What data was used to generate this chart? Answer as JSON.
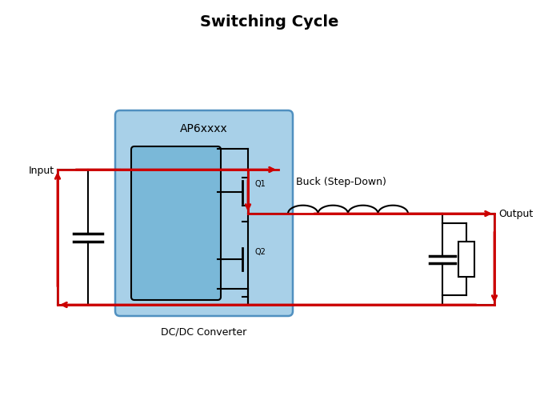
{
  "title": "Switching Cycle",
  "title_fontsize": 14,
  "title_fontweight": "bold",
  "bg_color": "#ffffff",
  "black": "#000000",
  "red": "#cc0000",
  "blue_fill": "#a8d0e8",
  "blue_border": "#5090c0",
  "label_input": "Input",
  "label_output": "Output",
  "label_ap6": "AP6xxxx",
  "label_q1": "Q1",
  "label_q2": "Q2",
  "label_buck": "Buck (Step-Down)",
  "label_dcdc": "DC/DC Converter",
  "font_size": 9,
  "lw_black": 1.5,
  "lw_red": 2.0
}
